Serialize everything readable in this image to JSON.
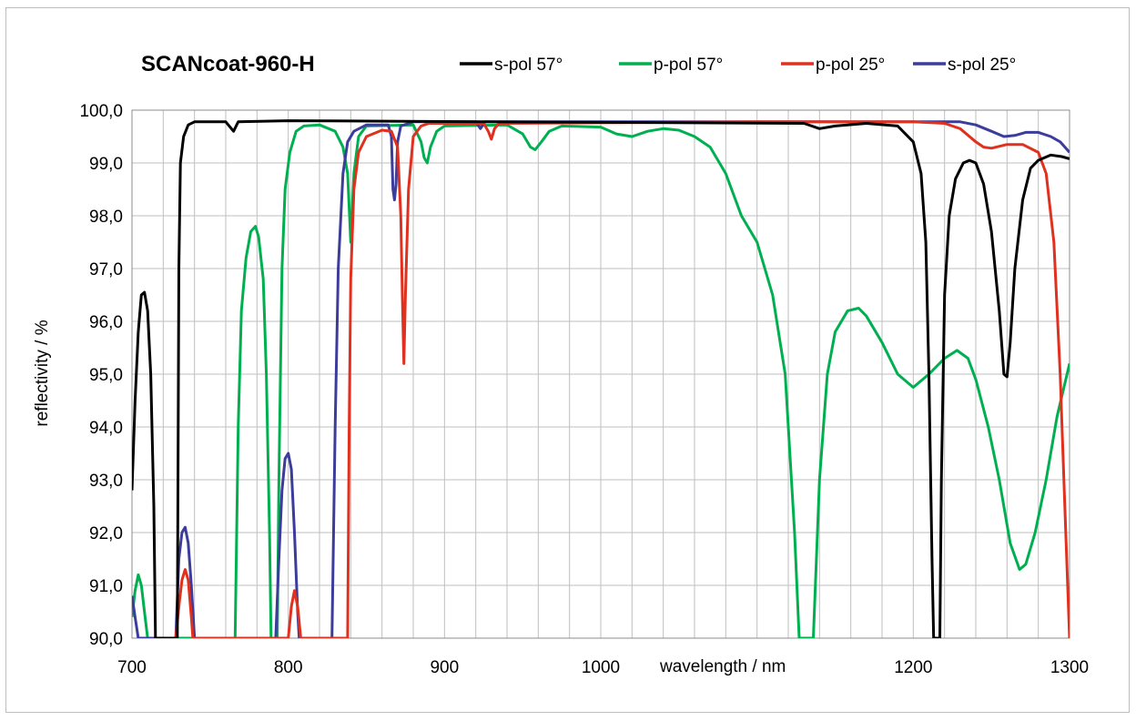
{
  "chart_data": {
    "type": "line",
    "title": "SCANcoat-960-H",
    "xlabel": "wavelength / nm",
    "ylabel": "reflectivity / %",
    "xlim": [
      700,
      1300
    ],
    "ylim": [
      90,
      100
    ],
    "x_ticks": [
      "700",
      "800",
      "900",
      "1000",
      "1200",
      "1300"
    ],
    "y_ticks": [
      "90,0",
      "91,0",
      "92,0",
      "93,0",
      "94,0",
      "95,0",
      "96,0",
      "97,0",
      "98,0",
      "99,0",
      "100,0"
    ],
    "grid": true,
    "legend_position": "top",
    "series": [
      {
        "name": "s-pol 57°",
        "color": "#000000",
        "points": [
          [
            700,
            92.8
          ],
          [
            702,
            94.5
          ],
          [
            704,
            95.8
          ],
          [
            706,
            96.5
          ],
          [
            708,
            96.55
          ],
          [
            710,
            96.2
          ],
          [
            712,
            95.0
          ],
          [
            714,
            92.5
          ],
          [
            715,
            90.0
          ],
          [
            729,
            90.0
          ],
          [
            730,
            97.0
          ],
          [
            731,
            99.0
          ],
          [
            733,
            99.5
          ],
          [
            736,
            99.72
          ],
          [
            740,
            99.78
          ],
          [
            760,
            99.78
          ],
          [
            765,
            99.6
          ],
          [
            768,
            99.78
          ],
          [
            800,
            99.8
          ],
          [
            1130,
            99.75
          ],
          [
            1140,
            99.65
          ],
          [
            1150,
            99.7
          ],
          [
            1170,
            99.75
          ],
          [
            1190,
            99.7
          ],
          [
            1200,
            99.4
          ],
          [
            1205,
            98.8
          ],
          [
            1208,
            97.5
          ],
          [
            1210,
            95.0
          ],
          [
            1212,
            91.5
          ],
          [
            1213,
            90.0
          ],
          [
            1217,
            90.0
          ],
          [
            1218,
            93.0
          ],
          [
            1220,
            96.5
          ],
          [
            1223,
            98.0
          ],
          [
            1227,
            98.7
          ],
          [
            1232,
            99.0
          ],
          [
            1236,
            99.05
          ],
          [
            1240,
            99.0
          ],
          [
            1245,
            98.6
          ],
          [
            1250,
            97.7
          ],
          [
            1255,
            96.2
          ],
          [
            1258,
            95.0
          ],
          [
            1260,
            94.95
          ],
          [
            1262,
            95.6
          ],
          [
            1265,
            97.0
          ],
          [
            1270,
            98.3
          ],
          [
            1275,
            98.9
          ],
          [
            1280,
            99.05
          ],
          [
            1288,
            99.15
          ],
          [
            1295,
            99.12
          ],
          [
            1300,
            99.08
          ]
        ]
      },
      {
        "name": "p-pol 57°",
        "color": "#00b050",
        "points": [
          [
            700,
            90.4
          ],
          [
            702,
            90.9
          ],
          [
            704,
            91.2
          ],
          [
            706,
            91.0
          ],
          [
            708,
            90.5
          ],
          [
            710,
            90.0
          ],
          [
            766,
            90.0
          ],
          [
            768,
            94.0
          ],
          [
            770,
            96.2
          ],
          [
            773,
            97.2
          ],
          [
            776,
            97.7
          ],
          [
            779,
            97.8
          ],
          [
            781,
            97.6
          ],
          [
            784,
            96.8
          ],
          [
            786,
            95.0
          ],
          [
            788,
            92.0
          ],
          [
            789,
            90.0
          ],
          [
            793,
            90.0
          ],
          [
            794,
            93.0
          ],
          [
            796,
            97.0
          ],
          [
            798,
            98.5
          ],
          [
            801,
            99.2
          ],
          [
            805,
            99.6
          ],
          [
            810,
            99.7
          ],
          [
            820,
            99.72
          ],
          [
            830,
            99.6
          ],
          [
            835,
            99.3
          ],
          [
            838,
            98.8
          ],
          [
            840,
            97.5
          ],
          [
            842,
            98.8
          ],
          [
            845,
            99.5
          ],
          [
            850,
            99.7
          ],
          [
            880,
            99.72
          ],
          [
            885,
            99.4
          ],
          [
            887,
            99.1
          ],
          [
            889,
            99.0
          ],
          [
            891,
            99.3
          ],
          [
            895,
            99.6
          ],
          [
            900,
            99.7
          ],
          [
            940,
            99.72
          ],
          [
            950,
            99.55
          ],
          [
            955,
            99.3
          ],
          [
            958,
            99.25
          ],
          [
            962,
            99.4
          ],
          [
            967,
            99.6
          ],
          [
            975,
            99.7
          ],
          [
            1000,
            99.68
          ],
          [
            1010,
            99.55
          ],
          [
            1020,
            99.5
          ],
          [
            1030,
            99.6
          ],
          [
            1040,
            99.65
          ],
          [
            1050,
            99.62
          ],
          [
            1060,
            99.5
          ],
          [
            1070,
            99.3
          ],
          [
            1080,
            98.8
          ],
          [
            1090,
            98.0
          ],
          [
            1100,
            97.5
          ],
          [
            1110,
            96.5
          ],
          [
            1118,
            95.0
          ],
          [
            1124,
            92.0
          ],
          [
            1127,
            90.0
          ],
          [
            1136,
            90.0
          ],
          [
            1140,
            93.0
          ],
          [
            1145,
            95.0
          ],
          [
            1150,
            95.8
          ],
          [
            1158,
            96.2
          ],
          [
            1165,
            96.25
          ],
          [
            1170,
            96.1
          ],
          [
            1180,
            95.6
          ],
          [
            1190,
            95.0
          ],
          [
            1200,
            94.75
          ],
          [
            1210,
            95.0
          ],
          [
            1220,
            95.3
          ],
          [
            1228,
            95.45
          ],
          [
            1235,
            95.3
          ],
          [
            1240,
            94.9
          ],
          [
            1248,
            94.0
          ],
          [
            1255,
            93.0
          ],
          [
            1262,
            91.8
          ],
          [
            1268,
            91.3
          ],
          [
            1272,
            91.4
          ],
          [
            1278,
            92.0
          ],
          [
            1285,
            93.0
          ],
          [
            1292,
            94.2
          ],
          [
            1300,
            95.2
          ]
        ]
      },
      {
        "name": "p-pol 25°",
        "color": "#e0301e",
        "points": [
          [
            728,
            90.0
          ],
          [
            730,
            90.6
          ],
          [
            732,
            91.1
          ],
          [
            734,
            91.3
          ],
          [
            736,
            91.1
          ],
          [
            738,
            90.4
          ],
          [
            739,
            90.0
          ],
          [
            800,
            90.0
          ],
          [
            802,
            90.6
          ],
          [
            804,
            90.9
          ],
          [
            806,
            90.6
          ],
          [
            808,
            90.0
          ],
          [
            838,
            90.0
          ],
          [
            839,
            94.0
          ],
          [
            840,
            96.8
          ],
          [
            842,
            98.5
          ],
          [
            845,
            99.2
          ],
          [
            850,
            99.5
          ],
          [
            860,
            99.62
          ],
          [
            866,
            99.6
          ],
          [
            870,
            99.3
          ],
          [
            872,
            98.0
          ],
          [
            873,
            96.5
          ],
          [
            874,
            95.2
          ],
          [
            875,
            96.5
          ],
          [
            877,
            98.5
          ],
          [
            880,
            99.5
          ],
          [
            885,
            99.7
          ],
          [
            890,
            99.75
          ],
          [
            925,
            99.75
          ],
          [
            928,
            99.6
          ],
          [
            930,
            99.45
          ],
          [
            932,
            99.65
          ],
          [
            935,
            99.75
          ],
          [
            1100,
            99.78
          ],
          [
            1200,
            99.78
          ],
          [
            1220,
            99.75
          ],
          [
            1230,
            99.65
          ],
          [
            1240,
            99.4
          ],
          [
            1245,
            99.3
          ],
          [
            1250,
            99.28
          ],
          [
            1260,
            99.35
          ],
          [
            1270,
            99.35
          ],
          [
            1280,
            99.2
          ],
          [
            1285,
            98.8
          ],
          [
            1290,
            97.5
          ],
          [
            1294,
            95.0
          ],
          [
            1297,
            92.5
          ],
          [
            1300,
            90.0
          ]
        ]
      },
      {
        "name": "s-pol 25°",
        "color": "#3c3c9b",
        "points": [
          [
            700,
            90.8
          ],
          [
            702,
            90.4
          ],
          [
            704,
            90.0
          ],
          [
            728,
            90.0
          ],
          [
            730,
            91.5
          ],
          [
            732,
            92.0
          ],
          [
            734,
            92.1
          ],
          [
            736,
            91.8
          ],
          [
            738,
            91.0
          ],
          [
            740,
            90.0
          ],
          [
            792,
            90.0
          ],
          [
            794,
            91.5
          ],
          [
            796,
            92.8
          ],
          [
            798,
            93.4
          ],
          [
            800,
            93.5
          ],
          [
            802,
            93.2
          ],
          [
            804,
            92.0
          ],
          [
            806,
            90.5
          ],
          [
            807,
            90.0
          ],
          [
            828,
            90.0
          ],
          [
            830,
            94.0
          ],
          [
            832,
            97.0
          ],
          [
            835,
            98.8
          ],
          [
            838,
            99.4
          ],
          [
            842,
            99.6
          ],
          [
            850,
            99.72
          ],
          [
            864,
            99.72
          ],
          [
            866,
            99.5
          ],
          [
            867,
            98.5
          ],
          [
            868,
            98.3
          ],
          [
            869,
            98.6
          ],
          [
            870,
            99.4
          ],
          [
            872,
            99.7
          ],
          [
            880,
            99.78
          ],
          [
            920,
            99.78
          ],
          [
            923,
            99.65
          ],
          [
            926,
            99.78
          ],
          [
            1200,
            99.78
          ],
          [
            1230,
            99.78
          ],
          [
            1240,
            99.72
          ],
          [
            1250,
            99.6
          ],
          [
            1258,
            99.5
          ],
          [
            1265,
            99.52
          ],
          [
            1272,
            99.58
          ],
          [
            1280,
            99.58
          ],
          [
            1288,
            99.5
          ],
          [
            1294,
            99.4
          ],
          [
            1300,
            99.2
          ]
        ]
      }
    ]
  }
}
